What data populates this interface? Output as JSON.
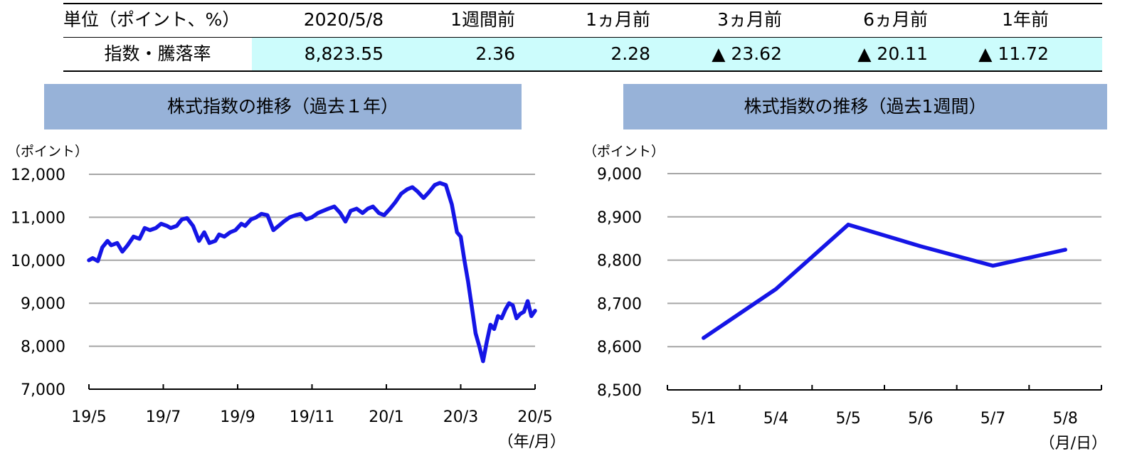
{
  "table": {
    "header": [
      "単位（ポイント、%）",
      "2020/5/8",
      "1週間前",
      "1ヵ月前",
      "3ヵ月前",
      "6ヵ月前",
      "1年前"
    ],
    "row_label": "指数・騰落率",
    "values": [
      "8,823.55",
      "2.36",
      "2.28",
      "▲ 23.62",
      "▲ 20.11",
      "▲ 11.72"
    ],
    "highlight_color": "#ccfcfc"
  },
  "chart_data": [
    {
      "type": "line",
      "title": "株式指数の推移（過去１年）",
      "ylabel": "（ポイント）",
      "xlabel": "（年/月）",
      "ylim": [
        7000,
        12000
      ],
      "yticks": [
        "12,000",
        "11,000",
        "10,000",
        "9,000",
        "8,000",
        "7,000"
      ],
      "ytick_values": [
        12000,
        11000,
        10000,
        9000,
        8000,
        7000
      ],
      "xticks": [
        "19/5",
        "19/7",
        "19/9",
        "19/11",
        "20/1",
        "20/3",
        "20/5"
      ],
      "grid": true,
      "line_color": "#1515e6",
      "series": [
        {
          "x": [
            0,
            0.05,
            0.12,
            0.18,
            0.25,
            0.3,
            0.38,
            0.45,
            0.52,
            0.6,
            0.68,
            0.75,
            0.82,
            0.9,
            0.97,
            1.05,
            1.1,
            1.18,
            1.25,
            1.32,
            1.4,
            1.48,
            1.55,
            1.62,
            1.7,
            1.75,
            1.82,
            1.9,
            1.97,
            2.05,
            2.1,
            2.18,
            2.25,
            2.32,
            2.4,
            2.48,
            2.55,
            2.62,
            2.7,
            2.78,
            2.85,
            2.92,
            3.0,
            3.08,
            3.15,
            3.22,
            3.3,
            3.38,
            3.45,
            3.52,
            3.6,
            3.68,
            3.75,
            3.82,
            3.9,
            3.97,
            4.05,
            4.12,
            4.2,
            4.28,
            4.35,
            4.42,
            4.5,
            4.58,
            4.65,
            4.72,
            4.8,
            4.88,
            4.95,
            5.0,
            5.05,
            5.1,
            5.15,
            5.2,
            5.25,
            5.3,
            5.35,
            5.4,
            5.45,
            5.5,
            5.55,
            5.6,
            5.65,
            5.7,
            5.75,
            5.8,
            5.85,
            5.9,
            5.95,
            6.0
          ],
          "y": [
            10000,
            10050,
            9980,
            10300,
            10450,
            10350,
            10400,
            10200,
            10350,
            10550,
            10500,
            10750,
            10700,
            10750,
            10850,
            10800,
            10750,
            10800,
            10950,
            10980,
            10800,
            10450,
            10650,
            10400,
            10450,
            10600,
            10550,
            10650,
            10700,
            10850,
            10800,
            10950,
            11000,
            11080,
            11050,
            10700,
            10800,
            10900,
            11000,
            11050,
            11080,
            10950,
            11000,
            11100,
            11150,
            11200,
            11250,
            11100,
            10900,
            11150,
            11200,
            11100,
            11200,
            11250,
            11100,
            11050,
            11200,
            11350,
            11550,
            11650,
            11700,
            11600,
            11450,
            11600,
            11750,
            11800,
            11750,
            11300,
            10650,
            10550,
            10000,
            9500,
            8900,
            8300,
            8000,
            7650,
            8100,
            8500,
            8400,
            8700,
            8650,
            8850,
            9000,
            8950,
            8650,
            8750,
            8800,
            9050,
            8700,
            8824
          ]
        }
      ]
    },
    {
      "type": "line",
      "title": "株式指数の推移（過去1週間）",
      "ylabel": "（ポイント）",
      "xlabel": "（月/日）",
      "ylim": [
        8500,
        9000
      ],
      "yticks": [
        "9,000",
        "8,900",
        "8,800",
        "8,700",
        "8,600",
        "8,500"
      ],
      "ytick_values": [
        9000,
        8900,
        8800,
        8700,
        8600,
        8500
      ],
      "categories": [
        "5/1",
        "5/4",
        "5/5",
        "5/6",
        "5/7",
        "5/8"
      ],
      "grid": true,
      "line_color": "#1515e6",
      "series": [
        {
          "values": [
            8620,
            8733,
            8882,
            8832,
            8787,
            8824
          ]
        }
      ]
    }
  ]
}
